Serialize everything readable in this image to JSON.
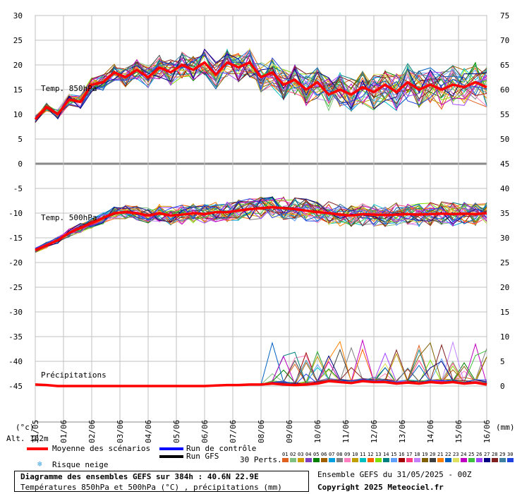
{
  "chart_data": {
    "type": "line",
    "dates": [
      "31/05",
      "01/06",
      "02/06",
      "03/06",
      "04/06",
      "05/06",
      "06/06",
      "07/06",
      "08/06",
      "09/06",
      "10/06",
      "11/06",
      "12/06",
      "13/06",
      "14/06",
      "15/06",
      "16/06"
    ],
    "date_labels": [
      "31/05",
      "01/06",
      "02/06",
      "03/06",
      "04/06",
      "05/06",
      "06/06",
      "07/06",
      "08/06",
      "09/06",
      "10/06",
      "11/06",
      "12/06",
      "13/06",
      "14/06",
      "15/06",
      "16/06"
    ],
    "left_axis_ticks": [
      30,
      25,
      20,
      15,
      10,
      5,
      0,
      -5,
      -10,
      -15,
      -20,
      -25,
      -30,
      -35,
      -40,
      -45
    ],
    "right_axis_upper_ticks": [
      75,
      70,
      65,
      60,
      55,
      50,
      45
    ],
    "right_axis_lower_ticks": [
      40,
      35,
      30,
      25,
      20,
      15,
      10,
      5,
      0
    ],
    "left_unit": "(°c)",
    "right_unit": "(mm)",
    "panels": [
      {
        "label": "Temp. 850hPa",
        "ylim": [
          0,
          30
        ]
      },
      {
        "label": "Temp. 500hPa",
        "ylim": [
          -20,
          -5
        ]
      },
      {
        "label": "Précipitations",
        "unit": "mm"
      }
    ],
    "mean_850": [
      9,
      11.5,
      10,
      13,
      12.5,
      16,
      16.5,
      18.5,
      17.5,
      19,
      17.5,
      19.5,
      18.5,
      20,
      19,
      20.5,
      18,
      20.5,
      19.5,
      20.5,
      17.5,
      18.5,
      16,
      17,
      15,
      16.5,
      14,
      15,
      14,
      15.5,
      14.5,
      16,
      14.5,
      16.5,
      15,
      16,
      15,
      16,
      15.5,
      16.5,
      15.5
    ],
    "mean_500": [
      -17.5,
      -16.5,
      -15.5,
      -14,
      -13,
      -12,
      -11,
      -10,
      -9.8,
      -10,
      -10.5,
      -10,
      -10.5,
      -10.3,
      -10,
      -10.2,
      -9.8,
      -9.8,
      -9.5,
      -9.2,
      -9,
      -8.8,
      -9,
      -9.2,
      -9.5,
      -9.8,
      -10,
      -10.3,
      -10.5,
      -10.2,
      -10.3,
      -10.4,
      -10.3,
      -10.2,
      -10.3,
      -10.2,
      -10.1,
      -10.2,
      -10.1,
      -10.2,
      -10
    ],
    "mean_precip": [
      0.3,
      0.2,
      0,
      0,
      0,
      0,
      0,
      0,
      0,
      0,
      0,
      0,
      0,
      0,
      0,
      0,
      0.1,
      0.2,
      0.2,
      0.3,
      0.3,
      0.5,
      0.3,
      0.2,
      0.3,
      0.5,
      1,
      0.8,
      0.6,
      1,
      0.8,
      0.8,
      0.5,
      0.7,
      0.5,
      0.8,
      0.6,
      0.8,
      0.5,
      0.7,
      0.3
    ],
    "series": [
      {
        "name": "Moyenne des scénarios",
        "color": "#ff0000"
      },
      {
        "name": "Run de contrôle",
        "color": "#0000ff"
      },
      {
        "name": "Run GFS",
        "color": "#000000"
      }
    ]
  },
  "altitude_label": "Alt. 162m",
  "legend": {
    "mean": "Moyenne des scénarios",
    "control": "Run de contrôle",
    "gfs": "Run GFS",
    "snow": "Risque neige",
    "perts": "30 Perts."
  },
  "perturbations": {
    "labels": [
      "01",
      "02",
      "03",
      "04",
      "05",
      "06",
      "07",
      "08",
      "09",
      "10",
      "11",
      "12",
      "13",
      "14",
      "15",
      "16",
      "17",
      "18",
      "19",
      "20",
      "21",
      "22",
      "23",
      "24",
      "25",
      "26",
      "27",
      "28",
      "29",
      "30"
    ],
    "colors": [
      "#e06020",
      "#80c080",
      "#d0a000",
      "#8040c0",
      "#008000",
      "#a06000",
      "#00a0e0",
      "#808080",
      "#ff80c0",
      "#c0a000",
      "#00c0c0",
      "#ff6000",
      "#80e000",
      "#008080",
      "#60a0ff",
      "#a00000",
      "#ff4080",
      "#c080ff",
      "#806000",
      "#404040",
      "#ff8000",
      "#0060c0",
      "#e0e060",
      "#c000c0",
      "#40c040",
      "#a040ff",
      "#000080",
      "#802020",
      "#4080a0",
      "#2040e0"
    ]
  },
  "footer": {
    "title": "Diagramme des ensembles GEFS sur 384h : 40.6N 22.9E",
    "subtitle": "Températures 850hPa et 500hPa (°C) , précipitations (mm)",
    "run_info": "Ensemble GEFS du 31/05/2025 - 00Z",
    "copyright": "Copyright 2025 Meteociel.fr"
  }
}
